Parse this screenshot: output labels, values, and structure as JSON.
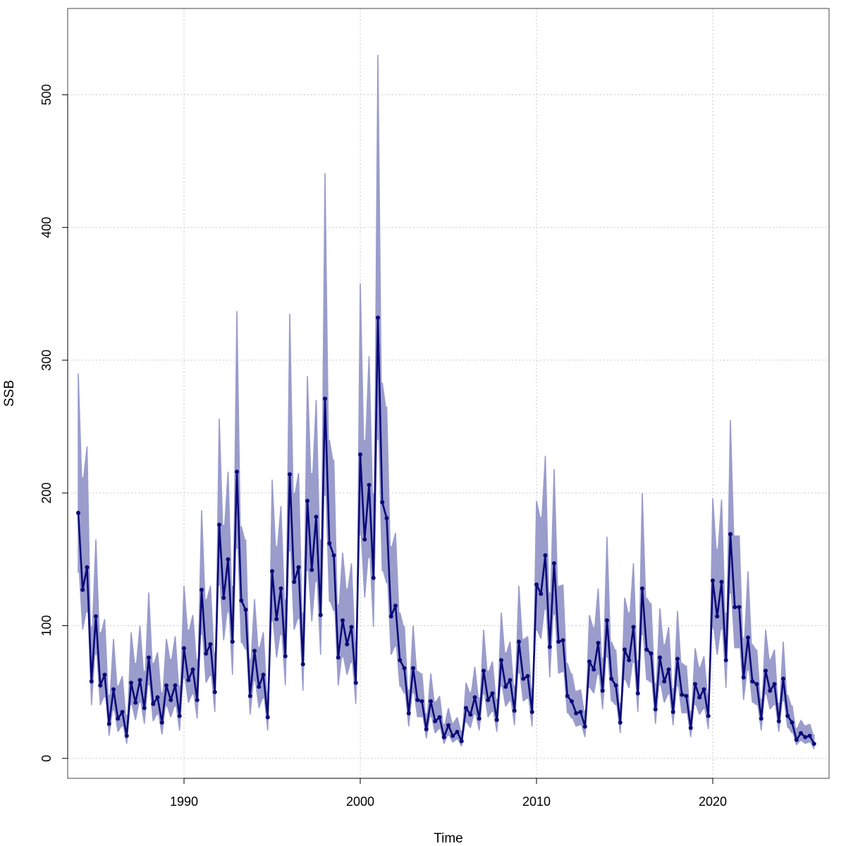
{
  "chart_data": {
    "type": "line",
    "title": "",
    "xlabel": "Time",
    "ylabel": "SSB",
    "xlim": [
      1983.4,
      2026.6
    ],
    "ylim": [
      -15,
      565
    ],
    "x_ticks": [
      1990,
      2000,
      2010,
      2020
    ],
    "y_ticks": [
      0,
      100,
      200,
      300,
      400,
      500
    ],
    "grid": true,
    "colors": {
      "line": "#0a0a78",
      "band": "#9a9ccc",
      "grid": "#c8c8c8"
    },
    "series": [
      {
        "x_start": 1984.0,
        "x_step": 0.25,
        "values": [
          185,
          127,
          144,
          58,
          107,
          55,
          63,
          26,
          52,
          30,
          35,
          17,
          57,
          42,
          59,
          38,
          76,
          41,
          46,
          27,
          55,
          44,
          55,
          32,
          83,
          59,
          67,
          44,
          127,
          79,
          86,
          50,
          176,
          121,
          150,
          88,
          216,
          119,
          112,
          47,
          81,
          54,
          63,
          31,
          141,
          105,
          128,
          77,
          214,
          133,
          144,
          71,
          194,
          142,
          182,
          108,
          271,
          162,
          153,
          76,
          104,
          86,
          99,
          57,
          229,
          165,
          206,
          136,
          332,
          193,
          181,
          107,
          115,
          74,
          68,
          34,
          68,
          44,
          43,
          22,
          43,
          28,
          31,
          16,
          25,
          17,
          20,
          13,
          38,
          33,
          46,
          30,
          66,
          44,
          49,
          29,
          74,
          54,
          59,
          36,
          88,
          60,
          62,
          35,
          131,
          124,
          153,
          84,
          147,
          88,
          89,
          47,
          43,
          34,
          35,
          24,
          73,
          67,
          87,
          51,
          104,
          60,
          55,
          27,
          82,
          74,
          99,
          49,
          128,
          82,
          79,
          37,
          76,
          58,
          67,
          35,
          75,
          48,
          47,
          23,
          56,
          46,
          52,
          32,
          134,
          107,
          133,
          74,
          169,
          114,
          114,
          61,
          91,
          58,
          56,
          30,
          66,
          51,
          56,
          28,
          60,
          32,
          27,
          14,
          19,
          16,
          17,
          11
        ],
        "lower": [
          140,
          97,
          110,
          40,
          78,
          40,
          46,
          17,
          36,
          20,
          24,
          11,
          40,
          29,
          42,
          26,
          55,
          28,
          33,
          18,
          39,
          31,
          39,
          21,
          60,
          42,
          48,
          30,
          93,
          57,
          62,
          35,
          130,
          89,
          110,
          63,
          158,
          87,
          82,
          33,
          58,
          38,
          45,
          21,
          103,
          76,
          93,
          55,
          156,
          97,
          105,
          51,
          141,
          103,
          133,
          78,
          198,
          118,
          111,
          55,
          76,
          63,
          72,
          41,
          168,
          121,
          151,
          99,
          240,
          141,
          132,
          78,
          84,
          54,
          49,
          24,
          49,
          31,
          31,
          15,
          31,
          19,
          22,
          11,
          17,
          12,
          14,
          9,
          27,
          23,
          33,
          21,
          48,
          31,
          35,
          20,
          54,
          39,
          43,
          25,
          64,
          43,
          45,
          24,
          96,
          90,
          112,
          61,
          108,
          64,
          65,
          34,
          30,
          24,
          25,
          16,
          53,
          49,
          63,
          37,
          76,
          43,
          40,
          19,
          59,
          53,
          72,
          35,
          93,
          59,
          57,
          26,
          55,
          42,
          48,
          25,
          54,
          34,
          34,
          16,
          40,
          33,
          37,
          22,
          98,
          78,
          97,
          53,
          124,
          83,
          83,
          44,
          66,
          42,
          40,
          21,
          48,
          37,
          40,
          20,
          43,
          23,
          19,
          10,
          13,
          11,
          12,
          7
        ],
        "upper": [
          290,
          212,
          235,
          100,
          165,
          95,
          105,
          48,
          90,
          55,
          62,
          33,
          95,
          72,
          100,
          66,
          125,
          72,
          80,
          50,
          90,
          75,
          92,
          55,
          130,
          97,
          108,
          75,
          187,
          120,
          130,
          80,
          256,
          176,
          216,
          130,
          337,
          175,
          165,
          75,
          120,
          84,
          95,
          50,
          210,
          160,
          190,
          120,
          335,
          200,
          215,
          110,
          288,
          215,
          270,
          165,
          441,
          240,
          225,
          116,
          155,
          128,
          147,
          88,
          358,
          240,
          303,
          200,
          530,
          283,
          265,
          160,
          170,
          110,
          100,
          52,
          100,
          66,
          64,
          34,
          64,
          43,
          47,
          26,
          38,
          27,
          31,
          21,
          57,
          50,
          69,
          46,
          97,
          66,
          73,
          45,
          110,
          80,
          88,
          55,
          130,
          90,
          92,
          53,
          194,
          182,
          228,
          125,
          218,
          130,
          131,
          72,
          64,
          51,
          52,
          36,
          108,
          99,
          128,
          76,
          167,
          88,
          82,
          42,
          121,
          110,
          147,
          74,
          200,
          121,
          117,
          57,
          113,
          86,
          99,
          53,
          111,
          72,
          70,
          36,
          83,
          69,
          77,
          48,
          196,
          158,
          195,
          110,
          255,
          168,
          168,
          91,
          141,
          86,
          82,
          45,
          97,
          75,
          82,
          42,
          88,
          48,
          40,
          23,
          29,
          25,
          26,
          18
        ]
      }
    ]
  }
}
